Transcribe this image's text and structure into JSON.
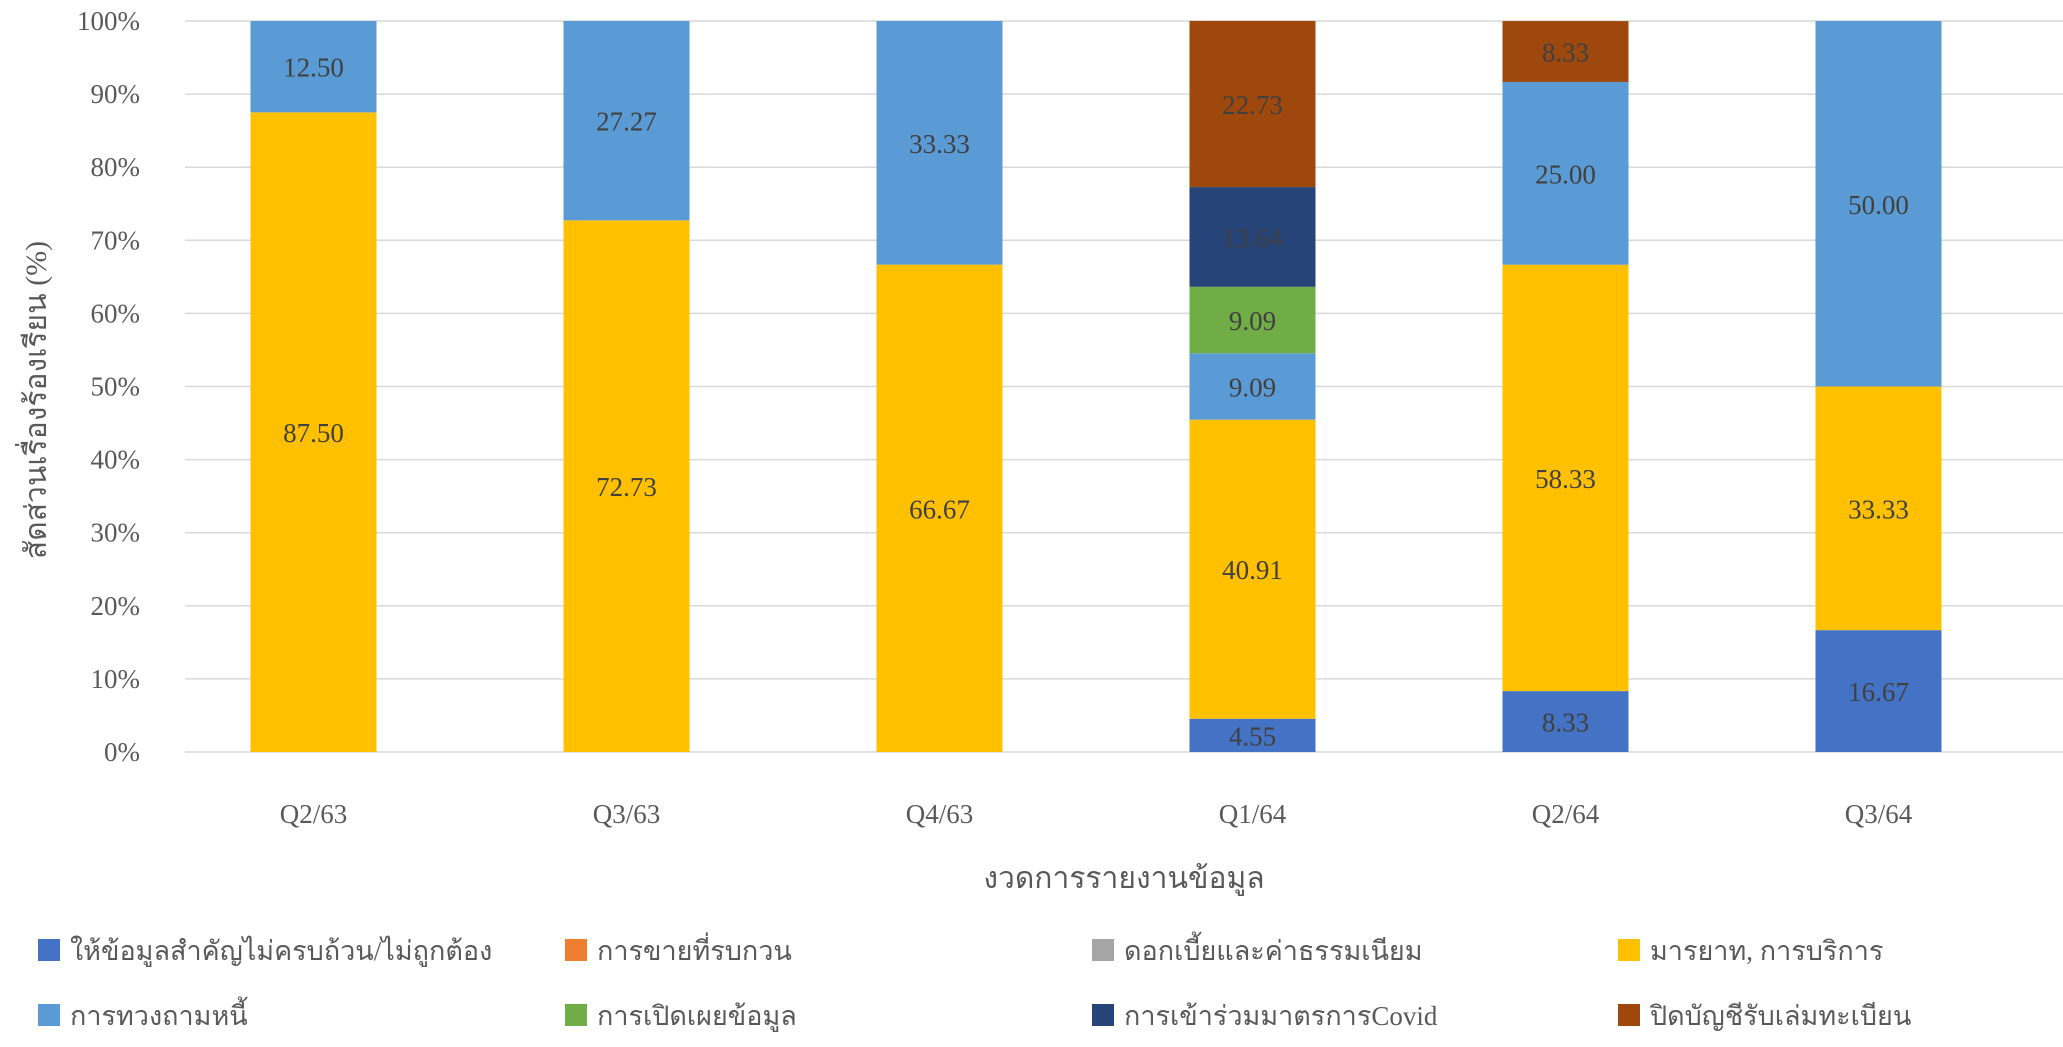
{
  "chart_data": {
    "type": "bar",
    "stacked": true,
    "normalized": true,
    "title": "",
    "xlabel": "งวดการรายงานข้อมูล",
    "ylabel": "สัดส่วนเรื่องร้องเรียน (%)",
    "ylim": [
      0,
      100
    ],
    "yticks": [
      "0%",
      "10%",
      "20%",
      "30%",
      "40%",
      "50%",
      "60%",
      "70%",
      "80%",
      "90%",
      "100%"
    ],
    "grid": true,
    "legend_position": "bottom",
    "categories": [
      "Q2/63",
      "Q3/63",
      "Q4/63",
      "Q1/64",
      "Q2/64",
      "Q3/64"
    ],
    "series": [
      {
        "name": "ให้ข้อมูลสำคัญไม่ครบถ้วน/ไม่ถูกต้อง",
        "color": "#4472C4",
        "values": [
          0,
          0,
          0,
          4.55,
          8.33,
          16.67
        ]
      },
      {
        "name": "การขายที่รบกวน",
        "color": "#ED7D31",
        "values": [
          0,
          0,
          0,
          0,
          0,
          0
        ]
      },
      {
        "name": "ดอกเบี้ยและค่าธรรมเนียม",
        "color": "#A5A5A5",
        "values": [
          0,
          0,
          0,
          0,
          0,
          0
        ]
      },
      {
        "name": "มารยาท, การบริการ",
        "color": "#FFC000",
        "values": [
          87.5,
          72.73,
          66.67,
          40.91,
          58.33,
          33.33
        ]
      },
      {
        "name": "การทวงถามหนี้",
        "color": "#5B9BD5",
        "values": [
          12.5,
          27.27,
          33.33,
          9.09,
          25.0,
          50.0
        ]
      },
      {
        "name": "การเปิดเผยข้อมูล",
        "color": "#70AD47",
        "values": [
          0,
          0,
          0,
          9.09,
          0,
          0
        ]
      },
      {
        "name": "การเข้าร่วมมาตรการCovid",
        "color": "#264478",
        "values": [
          0,
          0,
          0,
          13.64,
          0,
          0
        ]
      },
      {
        "name": "ปิดบัญชีรับเล่มทะเบียน",
        "color": "#9E480E",
        "values": [
          0,
          0,
          0,
          22.73,
          8.33,
          0
        ]
      }
    ]
  }
}
